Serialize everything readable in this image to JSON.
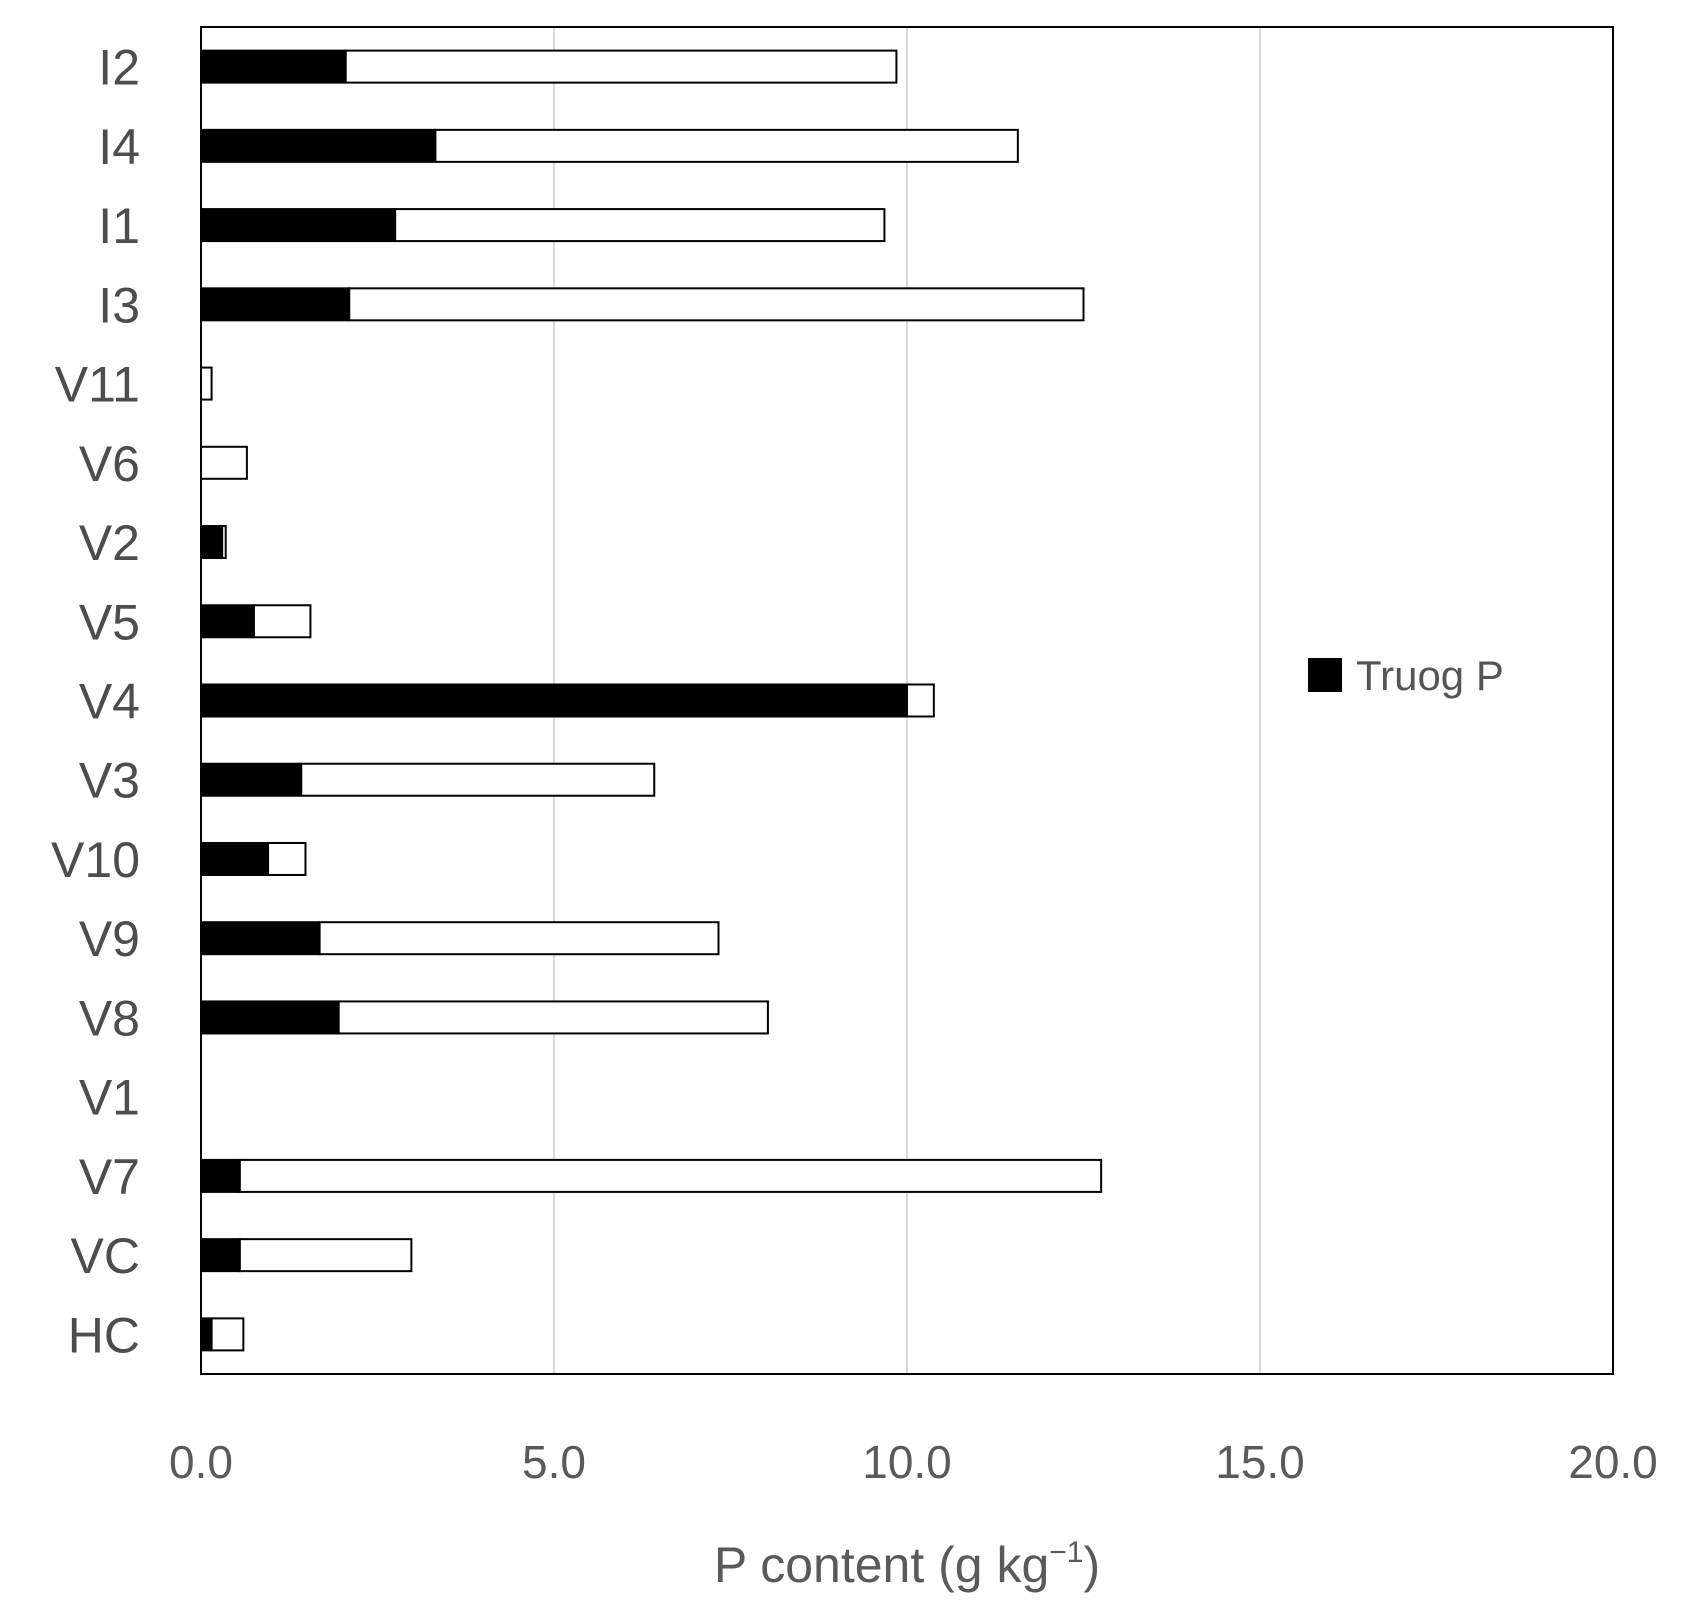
{
  "chart_data": {
    "type": "bar",
    "orientation": "horizontal",
    "stacked": true,
    "title": "",
    "xlabel": "P content (g kg",
    "xlabel_superscript": "−1",
    "xlabel_suffix": ")",
    "ylabel": "",
    "xlim": [
      0,
      20
    ],
    "x_ticks": [
      0,
      5,
      10,
      15,
      20
    ],
    "x_tick_labels": [
      "0.0",
      "5.0",
      "10.0",
      "15.0",
      "20.0"
    ],
    "grid": "vertical",
    "categories": [
      "I2",
      "I4",
      "I1",
      "I3",
      "V11",
      "V6",
      "V2",
      "V5",
      "V4",
      "V3",
      "V10",
      "V9",
      "V8",
      "V1",
      "V7",
      "VC",
      "HC"
    ],
    "series": [
      {
        "name": "Truog P",
        "color": "#000000",
        "values": [
          2.05,
          3.32,
          2.75,
          2.1,
          0,
          0,
          0.3,
          0.75,
          10.0,
          1.42,
          0.95,
          1.68,
          1.95,
          0,
          0.55,
          0.55,
          0.15
        ]
      },
      {
        "name": "",
        "color": "#ffffff",
        "values": [
          7.8,
          8.25,
          6.93,
          10.4,
          0.15,
          0.65,
          0.05,
          0.8,
          0.38,
          5.0,
          0.53,
          5.65,
          6.08,
          0,
          12.2,
          2.43,
          0.45
        ]
      }
    ],
    "legend": {
      "position": "right",
      "entries": [
        "Truog P"
      ]
    }
  }
}
